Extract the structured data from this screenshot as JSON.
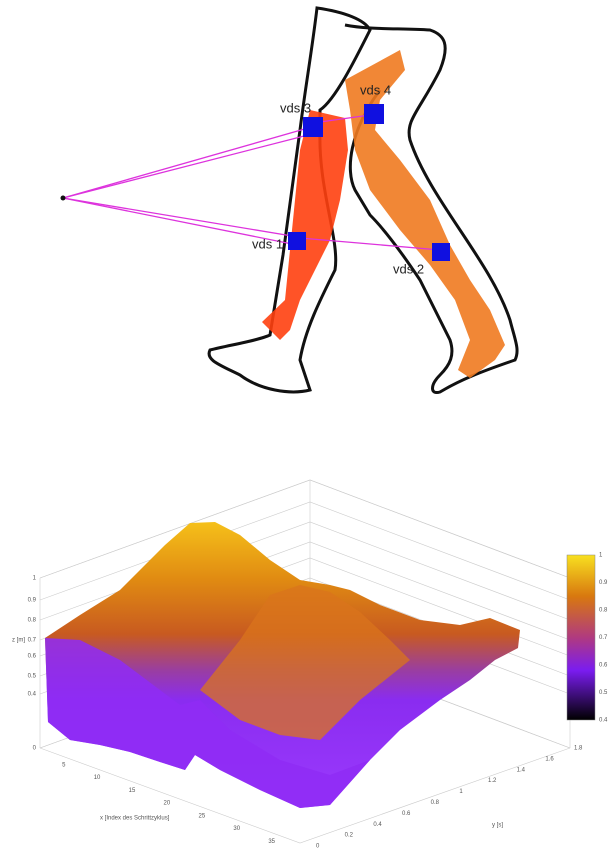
{
  "leg_figure": {
    "sensor_labels": [
      "vds 3",
      "vds 4",
      "vds 1",
      "vds 2"
    ]
  },
  "surface_plot": {
    "z_label": "z [m]",
    "x_label": "x [Index des Schrittzyklus]",
    "y_label": "y [s]",
    "z_ticks": [
      "1",
      "0.9",
      "0.8",
      "0.7",
      "0.6",
      "0.5",
      "0.4",
      "0"
    ],
    "x_ticks": [
      "5",
      "10",
      "15",
      "20",
      "25",
      "30",
      "35"
    ],
    "y_ticks": [
      "0",
      "0.2",
      "0.4",
      "0.6",
      "0.8",
      "1",
      "1.2",
      "1.4",
      "1.6",
      "1.8"
    ],
    "colorbar_ticks": [
      "1",
      "0.9",
      "0.8",
      "0.7",
      "0.6",
      "0.5",
      "0.4"
    ]
  }
}
